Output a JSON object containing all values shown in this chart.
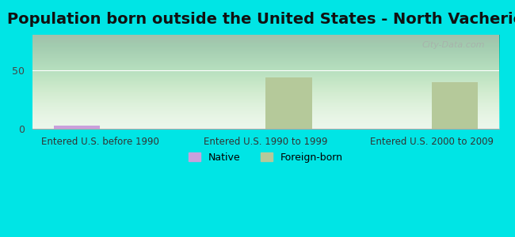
{
  "title": "Population born outside the United States - North Vacherie",
  "categories": [
    "Entered U.S. before 1990",
    "Entered U.S. 1990 to 1999",
    "Entered U.S. 2000 to 2009"
  ],
  "native_values": [
    3,
    0,
    0
  ],
  "foreign_values": [
    0,
    44,
    40
  ],
  "native_color": "#c9a0dc",
  "foreign_color": "#b5c99a",
  "background_outer": "#00e5e5",
  "background_inner": "#e8f5e8",
  "ylim": [
    0,
    80
  ],
  "yticks": [
    0,
    50
  ],
  "title_fontsize": 14,
  "axis_label_fontsize": 8.5,
  "legend_fontsize": 9,
  "watermark": "City-Data.com"
}
